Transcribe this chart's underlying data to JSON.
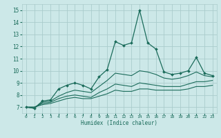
{
  "xlabel": "Humidex (Indice chaleur)",
  "background_color": "#cce8e8",
  "grid_color": "#aacccc",
  "line_color": "#1a6b5a",
  "xlim": [
    -0.5,
    23.5
  ],
  "ylim": [
    6.5,
    15.5
  ],
  "yticks": [
    7,
    8,
    9,
    10,
    11,
    12,
    13,
    14,
    15
  ],
  "xticks": [
    0,
    1,
    2,
    3,
    4,
    5,
    6,
    7,
    8,
    9,
    10,
    11,
    12,
    13,
    14,
    15,
    16,
    17,
    18,
    19,
    20,
    21,
    22,
    23
  ],
  "lines": [
    {
      "x": [
        0,
        1,
        2,
        3,
        4,
        5,
        6,
        7,
        8,
        9,
        10,
        11,
        12,
        13,
        14,
        15,
        16,
        17,
        18,
        19,
        20,
        21,
        22,
        23
      ],
      "y": [
        7.0,
        6.9,
        7.5,
        7.6,
        8.5,
        8.8,
        9.0,
        8.8,
        8.5,
        9.5,
        10.1,
        12.4,
        12.1,
        12.3,
        15.0,
        12.3,
        11.8,
        9.9,
        9.7,
        9.8,
        10.0,
        11.1,
        9.8,
        9.6
      ],
      "marker": "D",
      "markersize": 2.0,
      "linewidth": 0.9
    },
    {
      "x": [
        0,
        1,
        2,
        3,
        4,
        5,
        6,
        7,
        8,
        9,
        10,
        11,
        12,
        13,
        14,
        15,
        16,
        17,
        18,
        19,
        20,
        21,
        22,
        23
      ],
      "y": [
        7.0,
        6.9,
        7.4,
        7.5,
        7.9,
        8.2,
        8.4,
        8.3,
        8.2,
        8.7,
        9.2,
        9.8,
        9.7,
        9.6,
        10.0,
        9.9,
        9.7,
        9.4,
        9.3,
        9.4,
        9.6,
        9.9,
        9.6,
        9.5
      ],
      "marker": null,
      "markersize": 0,
      "linewidth": 0.8
    },
    {
      "x": [
        0,
        1,
        2,
        3,
        4,
        5,
        6,
        7,
        8,
        9,
        10,
        11,
        12,
        13,
        14,
        15,
        16,
        17,
        18,
        19,
        20,
        21,
        22,
        23
      ],
      "y": [
        7.0,
        7.0,
        7.3,
        7.4,
        7.7,
        7.9,
        8.0,
        7.9,
        7.8,
        8.2,
        8.5,
        8.9,
        8.8,
        8.7,
        9.0,
        8.9,
        8.8,
        8.7,
        8.7,
        8.7,
        8.9,
        9.1,
        9.1,
        9.2
      ],
      "marker": null,
      "markersize": 0,
      "linewidth": 0.8
    },
    {
      "x": [
        0,
        1,
        2,
        3,
        4,
        5,
        6,
        7,
        8,
        9,
        10,
        11,
        12,
        13,
        14,
        15,
        16,
        17,
        18,
        19,
        20,
        21,
        22,
        23
      ],
      "y": [
        7.0,
        7.0,
        7.2,
        7.3,
        7.5,
        7.7,
        7.8,
        7.7,
        7.7,
        7.9,
        8.1,
        8.4,
        8.3,
        8.3,
        8.5,
        8.5,
        8.4,
        8.4,
        8.4,
        8.4,
        8.5,
        8.7,
        8.7,
        8.8
      ],
      "marker": null,
      "markersize": 0,
      "linewidth": 0.8
    }
  ]
}
